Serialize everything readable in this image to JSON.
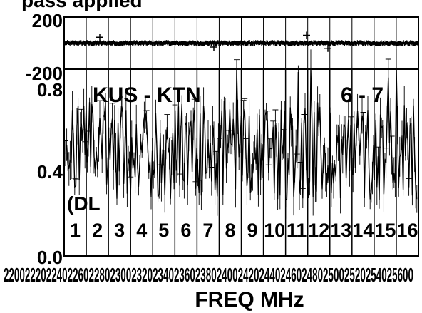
{
  "chart_data": [
    {
      "type": "scatter",
      "panel": "phase",
      "title": "pass applied",
      "ylim": [
        -200,
        200
      ],
      "yticks": [
        "200",
        "-200"
      ],
      "grid": true,
      "series": [
        {
          "values_level": 0,
          "scatter_range": [
            -8,
            8
          ]
        }
      ]
    },
    {
      "type": "line",
      "panel": "amplitude",
      "ylim": [
        0.0,
        0.8
      ],
      "yticks": [
        "0.8",
        "0.4",
        "0.0"
      ],
      "xlabel": "FREQ MHz",
      "x_tick_text": "2200222022402260228023002320234023602380240024202440246024802500252025402560",
      "x_tick_suffix": "0",
      "grid": true,
      "annotations": {
        "baseline": "KUS - KTN",
        "pol": "6 - 7",
        "mode": "(DL"
      },
      "channels": [
        "1",
        "2",
        "3",
        "4",
        "5",
        "6",
        "7",
        "8",
        "9",
        "10",
        "11",
        "12",
        "13",
        "14",
        "15",
        "16"
      ],
      "series": [
        {
          "mean": 0.45,
          "typical_range": [
            0.15,
            0.7
          ],
          "peaks_up_to": 0.8
        }
      ]
    }
  ]
}
